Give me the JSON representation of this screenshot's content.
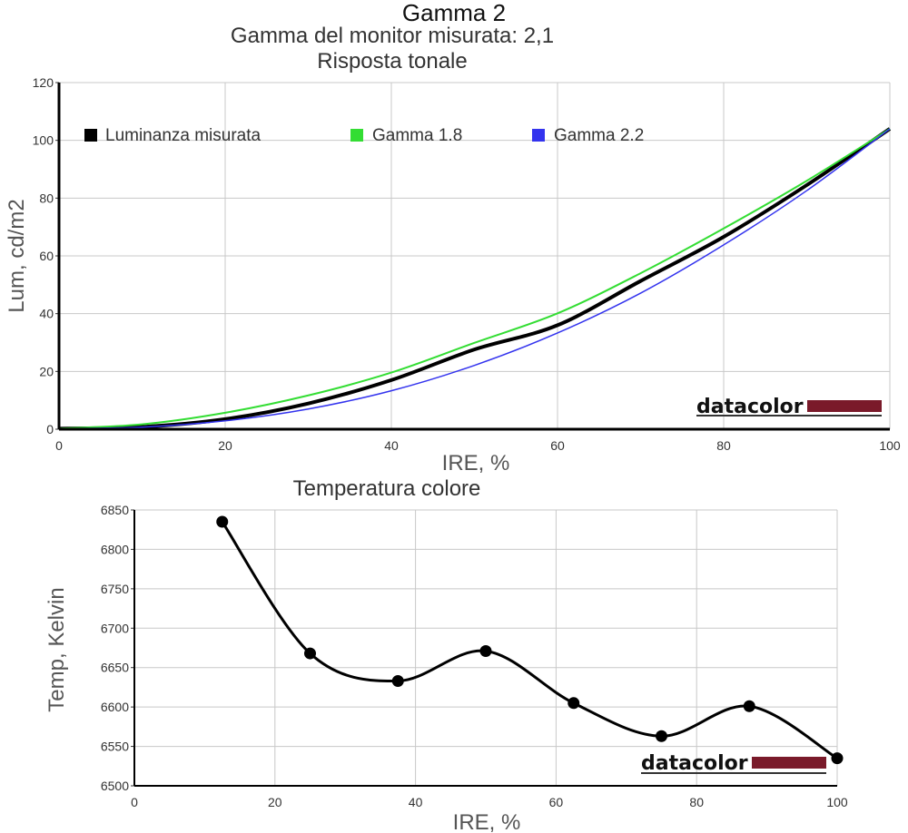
{
  "chart_data": [
    {
      "type": "line",
      "title": "Gamma 2",
      "subtitle": "Gamma del monitor misurata: 2,1",
      "subtitle2": "Risposta tonale",
      "xlabel": "IRE, %",
      "ylabel": "Lum, cd/m2",
      "xlim": [
        0,
        100
      ],
      "ylim": [
        0,
        120
      ],
      "xticks": [
        "0",
        "20",
        "40",
        "60",
        "80",
        "100"
      ],
      "yticks": [
        "0",
        "20",
        "40",
        "60",
        "80",
        "100",
        "120"
      ],
      "grid": true,
      "legend_position": "top",
      "watermark": "datacolor",
      "series": [
        {
          "name": "Luminanza misurata",
          "color": "#000000",
          "x": [
            0,
            10,
            20,
            30,
            40,
            50,
            60,
            70,
            80,
            90,
            100
          ],
          "y": [
            0.2,
            0.8,
            3.5,
            8.9,
            17.0,
            27.6,
            36.0,
            51.3,
            66.6,
            84.5,
            104.0
          ]
        },
        {
          "name": "Gamma 1.8",
          "color": "#33dd33",
          "x": [
            0,
            10,
            20,
            30,
            40,
            50,
            60,
            70,
            80,
            90,
            100
          ],
          "y": [
            0.2,
            1.7,
            5.7,
            11.7,
            19.6,
            29.9,
            40.1,
            54.0,
            69.5,
            86.0,
            104.0
          ]
        },
        {
          "name": "Gamma 2.2",
          "color": "#3333ee",
          "x": [
            0,
            10,
            20,
            30,
            40,
            50,
            60,
            70,
            80,
            90,
            100
          ],
          "y": [
            0.2,
            0.7,
            2.9,
            7.0,
            13.3,
            22.1,
            33.3,
            47.1,
            63.8,
            82.6,
            104.0
          ]
        }
      ]
    },
    {
      "type": "line",
      "title": "Temperatura colore",
      "xlabel": "IRE, %",
      "ylabel": "Temp, Kelvin",
      "xlim": [
        0,
        100
      ],
      "ylim": [
        6500,
        6850
      ],
      "xticks": [
        "0",
        "20",
        "40",
        "60",
        "80",
        "100"
      ],
      "yticks": [
        "6500",
        "6550",
        "6600",
        "6650",
        "6700",
        "6750",
        "6800",
        "6850"
      ],
      "grid": true,
      "watermark": "datacolor",
      "series": [
        {
          "color": "#000000",
          "x": [
            12.5,
            25,
            37.5,
            50,
            62.5,
            75,
            87.5,
            100
          ],
          "y": [
            6835,
            6668,
            6633,
            6671,
            6605,
            6563,
            6601,
            6535
          ]
        }
      ]
    }
  ]
}
